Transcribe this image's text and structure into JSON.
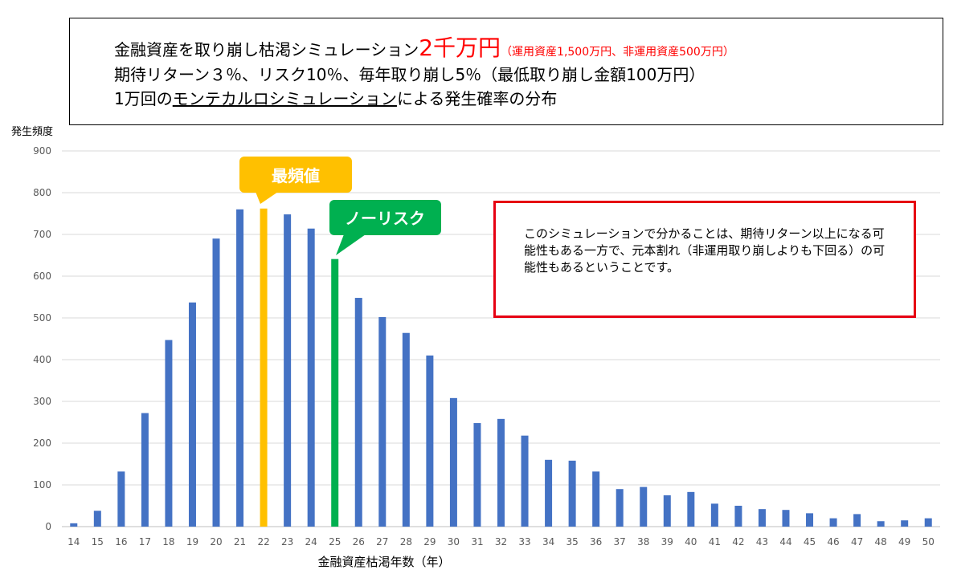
{
  "title": {
    "line1_main": "金融資産を取り崩し枯渇シミュレーション",
    "line1_amount": "2千万円",
    "line1_note": "（運用資産1,500万円、非運用資産500万円）",
    "line2": "期待リターン３％、リスク10％、毎年取り崩し5％（最低取り崩し金額100万円）",
    "line3_prefix": "1万回の",
    "line3_underlined": "モンテカルロシミュレーション",
    "line3_suffix": "による発生確率の分布"
  },
  "note": {
    "text": "このシミュレーションで分かることは、期待リターン以上になる可能性もある一方で、元本割れ（非運用取り崩しよりも下回る）の可能性もあるということです。"
  },
  "callouts": {
    "mode": {
      "label": "最頻値",
      "color": "#ffc000",
      "category": "22"
    },
    "norisk": {
      "label": "ノーリスク",
      "color": "#00b050",
      "category": "25"
    }
  },
  "colors": {
    "bar": "#4472c4",
    "mode": "#ffc000",
    "norisk": "#00b050",
    "grid": "#d9d9d9",
    "tick_text": "#595959"
  },
  "chart_data": {
    "type": "bar",
    "categories": [
      "14",
      "15",
      "16",
      "17",
      "18",
      "19",
      "20",
      "21",
      "22",
      "23",
      "24",
      "25",
      "26",
      "27",
      "28",
      "29",
      "30",
      "31",
      "32",
      "33",
      "34",
      "35",
      "36",
      "37",
      "38",
      "39",
      "40",
      "41",
      "42",
      "43",
      "44",
      "45",
      "46",
      "47",
      "48",
      "49",
      "50"
    ],
    "values": [
      8,
      38,
      132,
      272,
      447,
      537,
      690,
      760,
      762,
      748,
      714,
      641,
      548,
      502,
      464,
      410,
      308,
      248,
      258,
      218,
      160,
      158,
      132,
      90,
      95,
      75,
      83,
      55,
      50,
      42,
      40,
      32,
      20,
      30,
      13,
      15,
      20
    ],
    "ylabel": "発生頻度",
    "xlabel": "金融資産枯渇年数（年）",
    "ylim": [
      0,
      900
    ],
    "yticks": [
      0,
      100,
      200,
      300,
      400,
      500,
      600,
      700,
      800,
      900
    ],
    "grid": true
  }
}
